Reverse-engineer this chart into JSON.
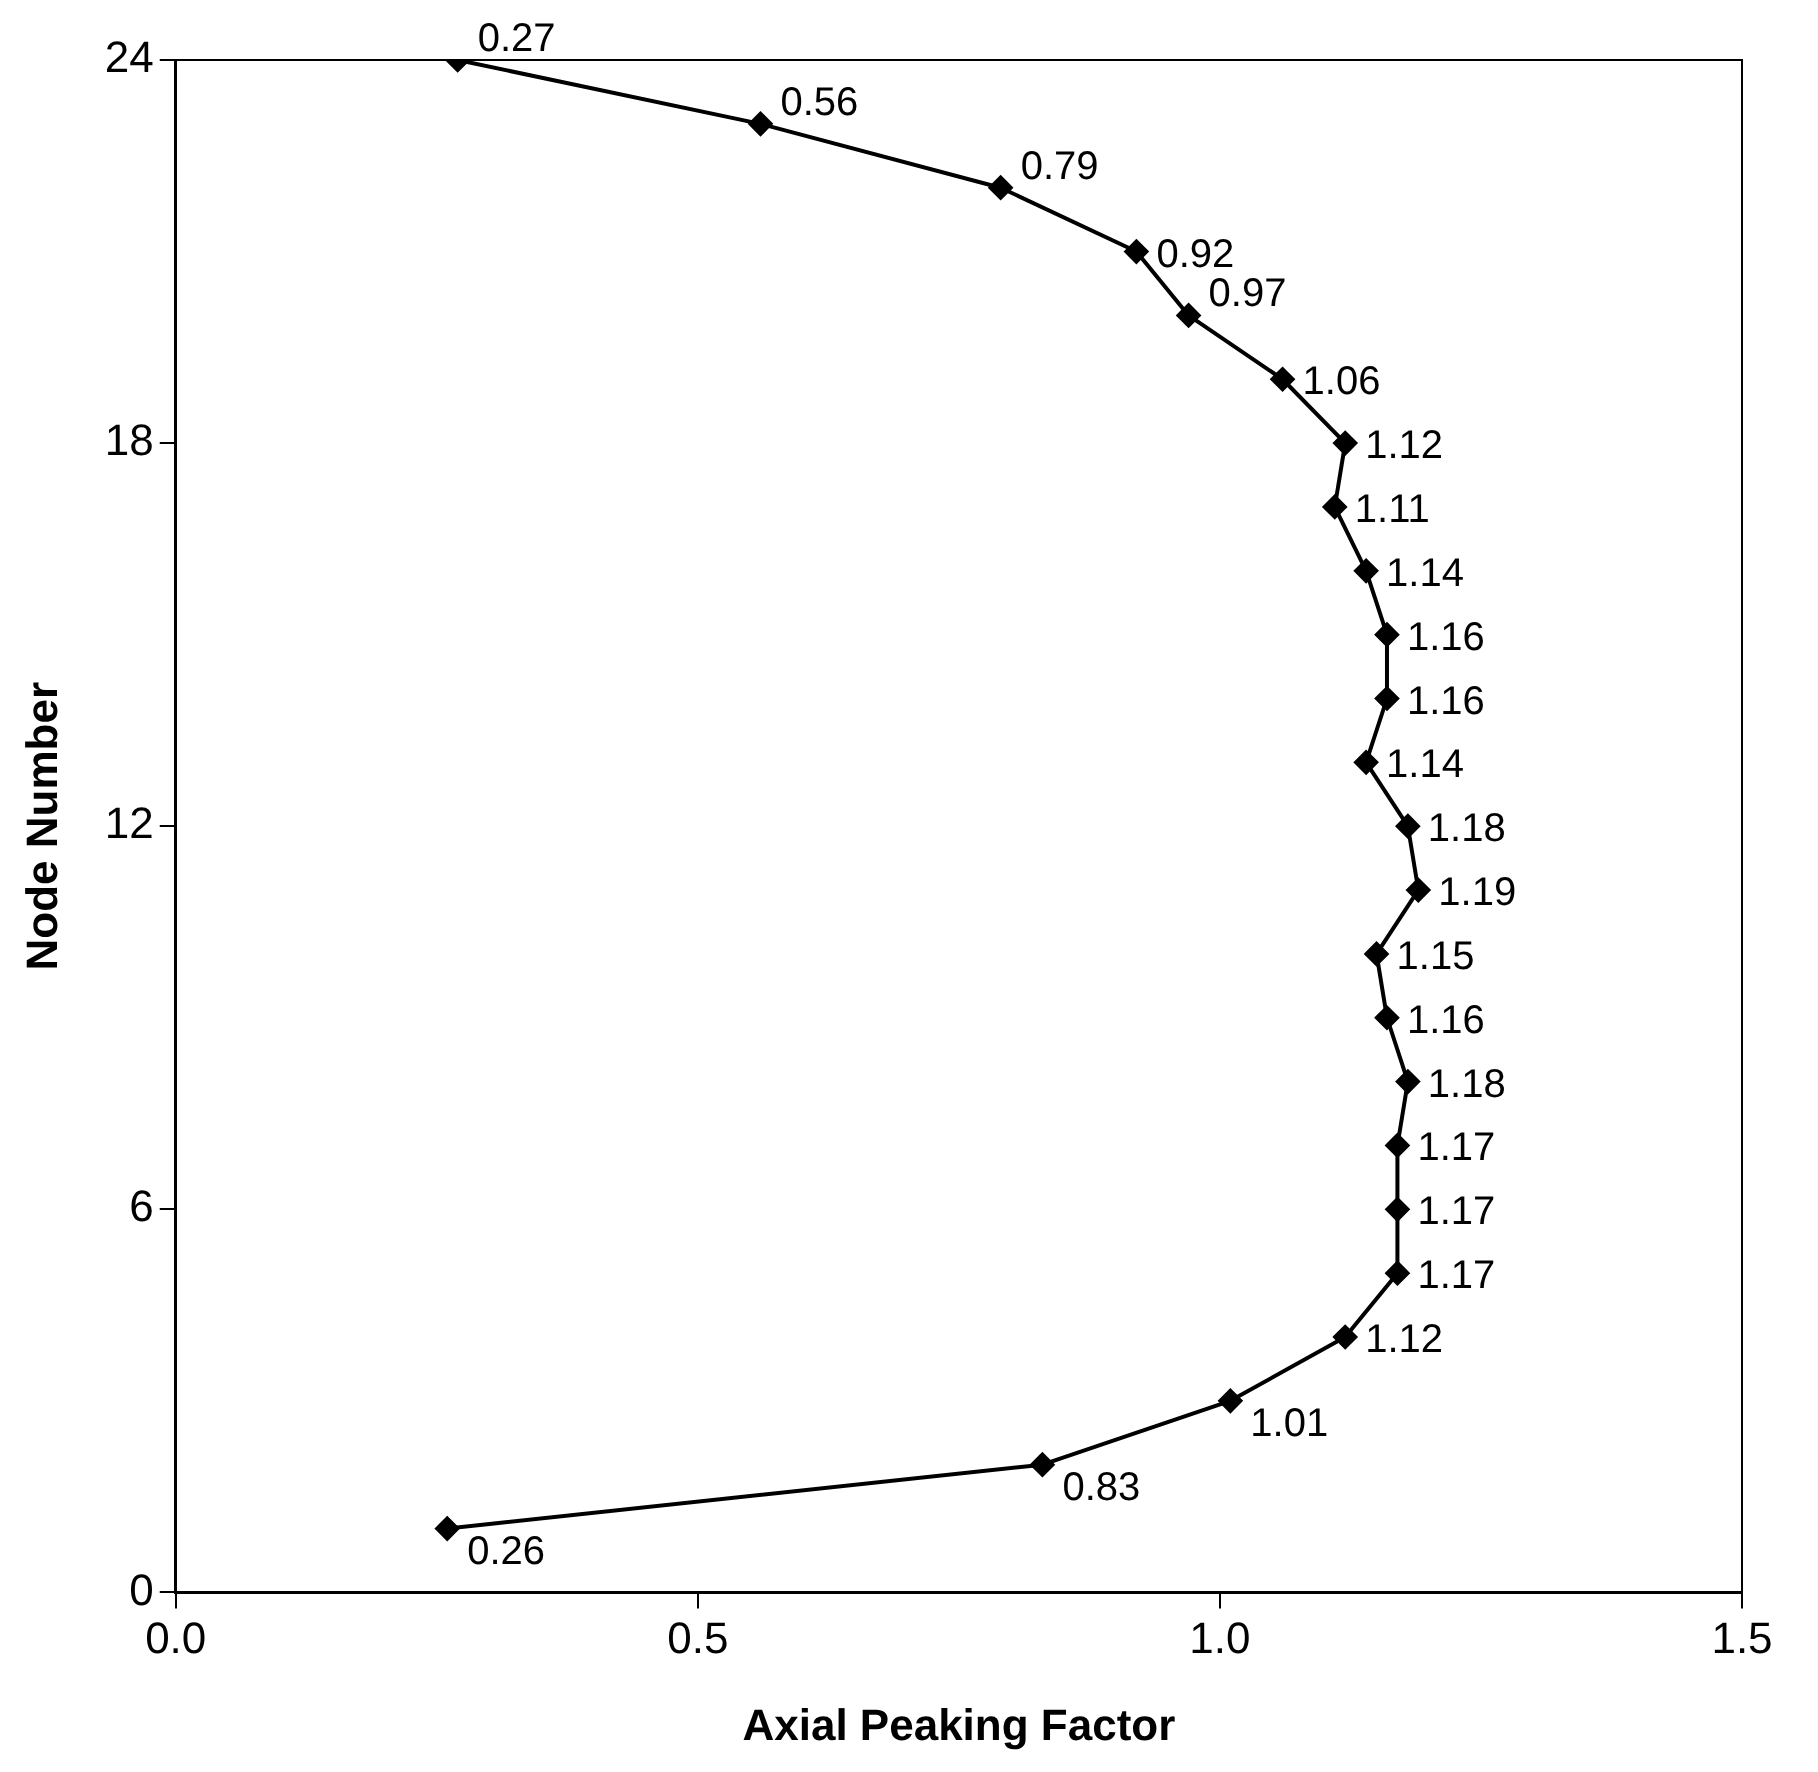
{
  "chart_data": {
    "type": "line",
    "orientation": "horizontal",
    "xlabel": "Axial Peaking Factor",
    "ylabel": "Node Number",
    "x": [
      1,
      2,
      3,
      4,
      5,
      6,
      7,
      8,
      9,
      10,
      11,
      12,
      13,
      14,
      15,
      16,
      17,
      18,
      19,
      20,
      21,
      22,
      23,
      24
    ],
    "values": [
      0.26,
      0.83,
      1.01,
      1.12,
      1.17,
      1.17,
      1.17,
      1.18,
      1.16,
      1.15,
      1.19,
      1.18,
      1.14,
      1.16,
      1.16,
      1.14,
      1.11,
      1.12,
      1.06,
      0.97,
      0.92,
      0.79,
      0.56,
      0.27
    ],
    "data_labels": true,
    "color": "#000000",
    "marker": "diamond",
    "line_style": "solid",
    "xlim": [
      0,
      1.5
    ],
    "xticks": [
      {
        "value": 0,
        "label": "0.0"
      },
      {
        "value": 0.5,
        "label": "0.5"
      },
      {
        "value": 1,
        "label": "1.0"
      },
      {
        "value": 1.5,
        "label": "1.5"
      }
    ],
    "ylim": [
      0,
      24
    ],
    "yticks": [
      0,
      6,
      12,
      18,
      24
    ],
    "grid": false,
    "legend": false
  }
}
